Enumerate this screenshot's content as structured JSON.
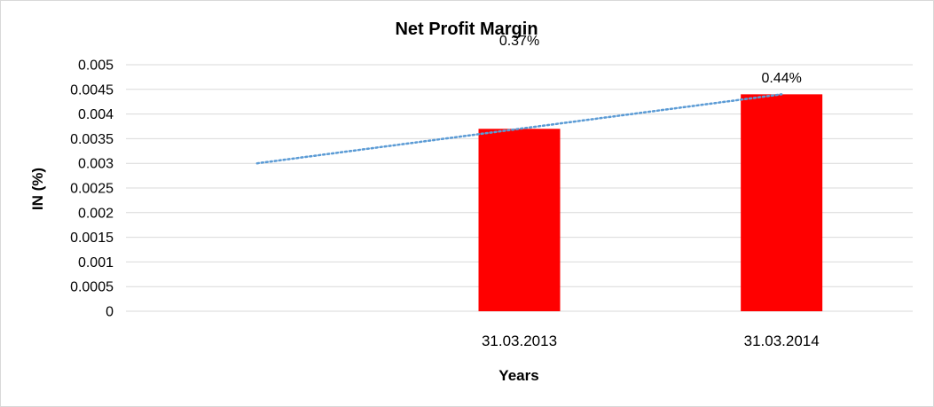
{
  "chart_data": {
    "type": "bar",
    "title": "Net Profit Margin",
    "xlabel": "Years",
    "ylabel": "IN (%)",
    "categories": [
      "",
      "31.03.2013",
      "31.03.2014"
    ],
    "values": [
      null,
      0.0037,
      0.0044
    ],
    "data_labels": [
      "",
      "0.37%",
      "0.44%"
    ],
    "ylim": [
      0,
      0.005
    ],
    "yticks": [
      "0",
      "0.0005",
      "0.001",
      "0.0015",
      "0.002",
      "0.0025",
      "0.003",
      "0.0035",
      "0.004",
      "0.0045",
      "0.005"
    ],
    "grid": true,
    "legend": "none",
    "bar_color": "#ff0000",
    "trendline": {
      "type": "linear",
      "style": "dotted",
      "color": "#5b9bd5",
      "points": [
        0.003,
        0.00362,
        0.0044
      ]
    }
  }
}
